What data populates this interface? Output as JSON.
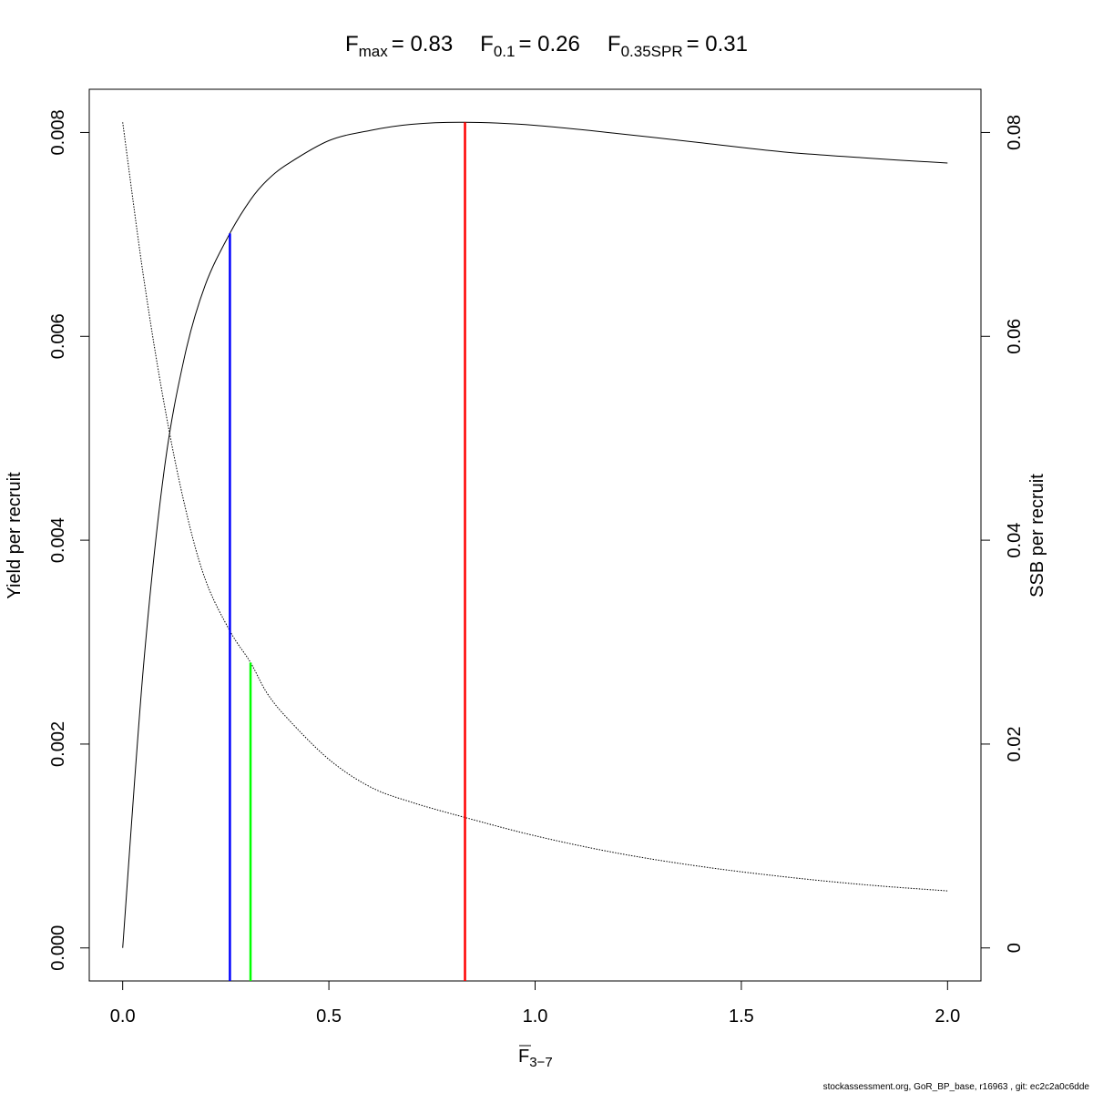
{
  "chart_data": {
    "type": "line",
    "title": {
      "fmax_sym": "F",
      "fmax_sub": "max",
      "fmax_val": "= 0.83",
      "f01_sym": "F",
      "f01_sub": "0.1",
      "f01_val": "= 0.26",
      "fspr_sym": "F",
      "fspr_sub": "0.35SPR",
      "fspr_val": "= 0.31"
    },
    "xlabel": {
      "main": "F",
      "sub": "3−7"
    },
    "ylabel": "Yield per recruit",
    "y2label": "SSB per recruit",
    "xlim": [
      -0.081,
      2.081
    ],
    "ylim": [
      -0.000324,
      0.008424
    ],
    "y2lim": [
      -0.00324,
      0.08424
    ],
    "x_ticks": [
      "0.0",
      "0.5",
      "1.0",
      "1.5",
      "2.0"
    ],
    "y_ticks": [
      "0.000",
      "0.002",
      "0.004",
      "0.006",
      "0.008"
    ],
    "y2_ticks": [
      "0",
      "0.02",
      "0.04",
      "0.06",
      "0.08"
    ],
    "series": [
      {
        "axis": "left",
        "style": "solid",
        "color": "#000000",
        "x": [
          0.0,
          0.05,
          0.1,
          0.15,
          0.2,
          0.26,
          0.31,
          0.35,
          0.4,
          0.5,
          0.6,
          0.7,
          0.83,
          1.0,
          1.2,
          1.4,
          1.6,
          1.8,
          2.0
        ],
        "y": [
          0.0,
          0.00274,
          0.00467,
          0.0058,
          0.0065,
          0.00701,
          0.00734,
          0.00753,
          0.00769,
          0.00792,
          0.00802,
          0.00808,
          0.0081,
          0.00807,
          0.00799,
          0.0079,
          0.00781,
          0.00775,
          0.0077
        ]
      },
      {
        "axis": "right",
        "style": "dotted",
        "color": "#000000",
        "x": [
          0.0,
          0.05,
          0.1,
          0.15,
          0.2,
          0.26,
          0.31,
          0.35,
          0.4,
          0.5,
          0.6,
          0.7,
          0.83,
          1.0,
          1.2,
          1.4,
          1.6,
          1.8,
          2.0
        ],
        "y": [
          0.081,
          0.066,
          0.0535,
          0.0435,
          0.0362,
          0.0311,
          0.028,
          0.025,
          0.0225,
          0.0185,
          0.0158,
          0.0143,
          0.0128,
          0.011,
          0.0093,
          0.008,
          0.007,
          0.0062,
          0.0056
        ]
      }
    ],
    "reference_lines": [
      {
        "x": 0.26,
        "to_y": 0.00701,
        "axis": "left",
        "color": "#0000ff"
      },
      {
        "x": 0.31,
        "to_y": 0.028,
        "axis": "right",
        "color": "#00ff00"
      },
      {
        "x": 0.83,
        "to_y": 0.0081,
        "axis": "left",
        "color": "#ff0000"
      }
    ]
  },
  "footnote": "stockassessment.org, GoR_BP_base, r16963 , git: ec2c2a0c6dde"
}
